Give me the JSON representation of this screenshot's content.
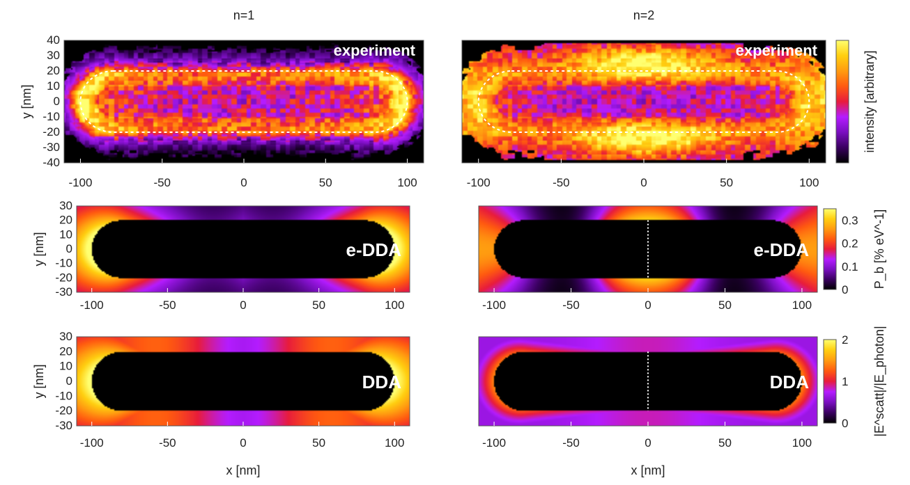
{
  "chart_data": [
    {
      "type": "heatmap",
      "title": "n=1",
      "overlay_label": "experiment",
      "xlabel": "",
      "ylabel": "y [nm]",
      "xlim": [
        -110,
        110
      ],
      "ylim": [
        -40,
        40
      ],
      "x_ticks": [
        -100,
        -50,
        0,
        50,
        100
      ],
      "y_ticks": [
        40,
        30,
        20,
        10,
        0,
        -10,
        -20,
        -30,
        -40
      ],
      "map": "exp1",
      "outline": "dashed"
    },
    {
      "type": "heatmap",
      "title": "n=2",
      "overlay_label": "experiment",
      "xlabel": "",
      "ylabel": "",
      "xlim": [
        -110,
        110
      ],
      "ylim": [
        -40,
        40
      ],
      "x_ticks": [
        -100,
        -50,
        0,
        50,
        100
      ],
      "y_ticks": [],
      "map": "exp2",
      "outline": "dashed",
      "colorbar": {
        "label": "intensity [arbitrary]",
        "ticks": []
      }
    },
    {
      "type": "heatmap",
      "title": "",
      "overlay_label": "e-DDA",
      "xlabel": "",
      "ylabel": "y [nm]",
      "xlim": [
        -110,
        110
      ],
      "ylim": [
        -30,
        30
      ],
      "x_ticks": [
        -100,
        -50,
        0,
        50,
        100
      ],
      "y_ticks": [
        30,
        20,
        10,
        0,
        -10,
        -20,
        -30
      ],
      "map": "sim1"
    },
    {
      "type": "heatmap",
      "title": "",
      "overlay_label": "e-DDA",
      "xlabel": "",
      "ylabel": "",
      "xlim": [
        -110,
        110
      ],
      "ylim": [
        -30,
        30
      ],
      "x_ticks": [
        -100,
        -50,
        0,
        50,
        100
      ],
      "y_ticks": [],
      "map": "sim2",
      "center_line": true,
      "colorbar": {
        "label": "P_b [% eV^-1]",
        "ticks": [
          0.3,
          0.2,
          0.1,
          0
        ],
        "range": [
          0,
          0.35
        ]
      }
    },
    {
      "type": "heatmap",
      "title": "",
      "overlay_label": "DDA",
      "xlabel": "x [nm]",
      "ylabel": "y [nm]",
      "xlim": [
        -110,
        110
      ],
      "ylim": [
        -30,
        30
      ],
      "x_ticks": [
        -100,
        -50,
        0,
        50,
        100
      ],
      "y_ticks": [
        30,
        20,
        10,
        0,
        -10,
        -20,
        -30
      ],
      "map": "dda1"
    },
    {
      "type": "heatmap",
      "title": "",
      "overlay_label": "DDA",
      "xlabel": "x [nm]",
      "ylabel": "",
      "xlim": [
        -110,
        110
      ],
      "ylim": [
        -30,
        30
      ],
      "x_ticks": [
        -100,
        -50,
        0,
        50,
        100
      ],
      "y_ticks": [],
      "map": "dda2",
      "center_line": true,
      "colorbar": {
        "label": "|E^scatt|/|E_photon|",
        "ticks": [
          2,
          1,
          0
        ],
        "range": [
          0,
          2
        ]
      }
    }
  ],
  "colormap": [
    "#000000",
    "#3a0060",
    "#7a0fc0",
    "#b41cff",
    "#e81c3c",
    "#ff5a10",
    "#ff9b10",
    "#ffcf10",
    "#ffff70"
  ],
  "rod": {
    "half_length_nm": 100,
    "radius_nm": 20
  }
}
